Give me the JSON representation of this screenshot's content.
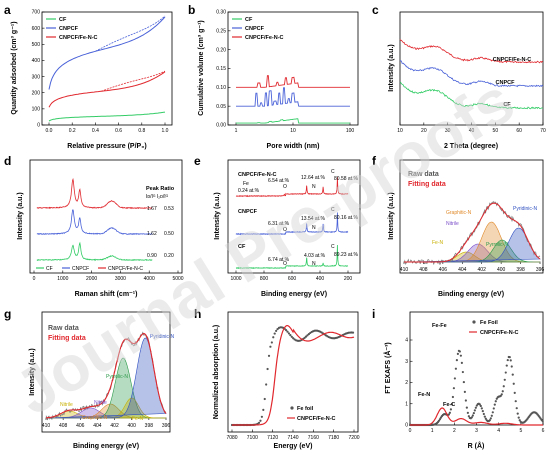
{
  "watermark": "Journal Pre-proofs",
  "colors": {
    "cf": "#33cc66",
    "cnpcf": "#4a62d8",
    "fenc": "#e0282e",
    "fefoil": "#555555",
    "raw": "#777777"
  },
  "panels": {
    "a": {
      "label": "a",
      "xlabel": "Relative pressure (P/P₀)",
      "ylabel": "Quantity adsorbed (cm³ g⁻¹)",
      "xticks": [
        "0.0",
        "0.2",
        "0.4",
        "0.6",
        "0.8",
        "1.0"
      ],
      "yticks": [
        "0",
        "100",
        "200",
        "300",
        "400",
        "500",
        "600",
        "700"
      ],
      "legend": [
        "CF",
        "CNPCF",
        "CNPCF/Fe-N-C"
      ]
    },
    "b": {
      "label": "b",
      "xlabel": "Pore width (nm)",
      "ylabel": "Cumulative volume (cm³ g⁻¹)",
      "xticks": [
        "1",
        "10",
        "100"
      ],
      "yticks": [
        "0.00",
        "0.05",
        "0.10",
        "0.15",
        "0.20",
        "0.25",
        "0.30"
      ],
      "legend": [
        "CF",
        "CNPCF",
        "CNPCF/Fe-N-C"
      ]
    },
    "c": {
      "label": "c",
      "xlabel": "2 Theta (degree)",
      "ylabel": "Intensity (a.u.)",
      "xticks": [
        "10",
        "20",
        "30",
        "40",
        "50",
        "60",
        "70"
      ],
      "curve_labels": [
        "CNPCF/Fe-N-C",
        "CNPCF",
        "CF"
      ]
    },
    "d": {
      "label": "d",
      "xlabel": "Raman shift (cm⁻¹)",
      "ylabel": "Intensity (a.u.)",
      "xticks": [
        "0",
        "1000",
        "2000",
        "3000",
        "4000",
        "5000"
      ],
      "ratio_title": "Peak Ratio",
      "ratio_cols": "Iᴅ/Iᴳ   I₂ᴅ/Iᴳ",
      "ratios": [
        [
          "1.67",
          "0.53"
        ],
        [
          "1.62",
          "0.50"
        ],
        [
          "0.90",
          "0.20"
        ]
      ],
      "legend": [
        "CF",
        "CNPCF",
        "CNPCF/Fe-N-C"
      ]
    },
    "e": {
      "label": "e",
      "xlabel": "Binding energy (eV)",
      "ylabel": "Intensity (a.u.)",
      "xticks": [
        "1000",
        "800",
        "600",
        "400",
        "200"
      ],
      "samples": [
        {
          "name": "CNPCF/Fe-N-C",
          "o": "6.54 at.%",
          "n": "12.64 at.%",
          "c": "80.58 at.%",
          "fe": "Fe",
          "fe_val": "0.24 at.%",
          "o_lbl": "O",
          "n_lbl": "N",
          "c_lbl": "C"
        },
        {
          "name": "CNPCF",
          "o": "6.31 at.%",
          "n": "13.54 at.%",
          "c": "80.16 at.%",
          "o_lbl": "O",
          "n_lbl": "N",
          "c_lbl": "C"
        },
        {
          "name": "CF",
          "o": "6.74 at.%",
          "n": "4.03 at.%",
          "c": "89.23 at.%",
          "o_lbl": "O",
          "n_lbl": "N",
          "c_lbl": "C"
        }
      ]
    },
    "f": {
      "label": "f",
      "xlabel": "Binding energy (eV)",
      "ylabel": "Intensity (a.u.)",
      "xticks": [
        "410",
        "408",
        "406",
        "404",
        "402",
        "400",
        "398",
        "396"
      ],
      "legend": [
        "Raw data",
        "Fitting data"
      ],
      "peaks": [
        "Graphitic-N",
        "Nitrile",
        "Fe-N",
        "Pyrrolic-N",
        "Pyridinic-N"
      ]
    },
    "g": {
      "label": "g",
      "xlabel": "Binding energy (eV)",
      "ylabel": "Intensity (a.u.)",
      "xticks": [
        "410",
        "408",
        "406",
        "404",
        "402",
        "400",
        "398",
        "396"
      ],
      "legend": [
        "Raw data",
        "Fitting data"
      ],
      "peaks": [
        "Pyridinic-N",
        "Pyrrolic-N",
        "Nitrile",
        "Graphitic-N",
        "Fe-N",
        "Nitrile"
      ]
    },
    "h": {
      "label": "h",
      "xlabel": "Energy (eV)",
      "ylabel": "Normalized absorption (a.u.)",
      "xticks": [
        "7080",
        "7100",
        "7120",
        "7140",
        "7160",
        "7180",
        "7200"
      ],
      "legend": [
        "Fe foil",
        "CNPCF/Fe-N-C"
      ]
    },
    "i": {
      "label": "i",
      "xlabel": "R (Å)",
      "ylabel": "FT EXAFS (Å⁻³)",
      "xticks": [
        "0",
        "1",
        "2",
        "3",
        "4",
        "5",
        "6"
      ],
      "yticks": [
        "0",
        "1",
        "2",
        "3",
        "4"
      ],
      "legend": [
        "Fe Foil",
        "CNPCF/Fe-N-C"
      ],
      "peak_labels": [
        "Fe-Fe",
        "Fe-N",
        "Fe-C"
      ]
    }
  }
}
